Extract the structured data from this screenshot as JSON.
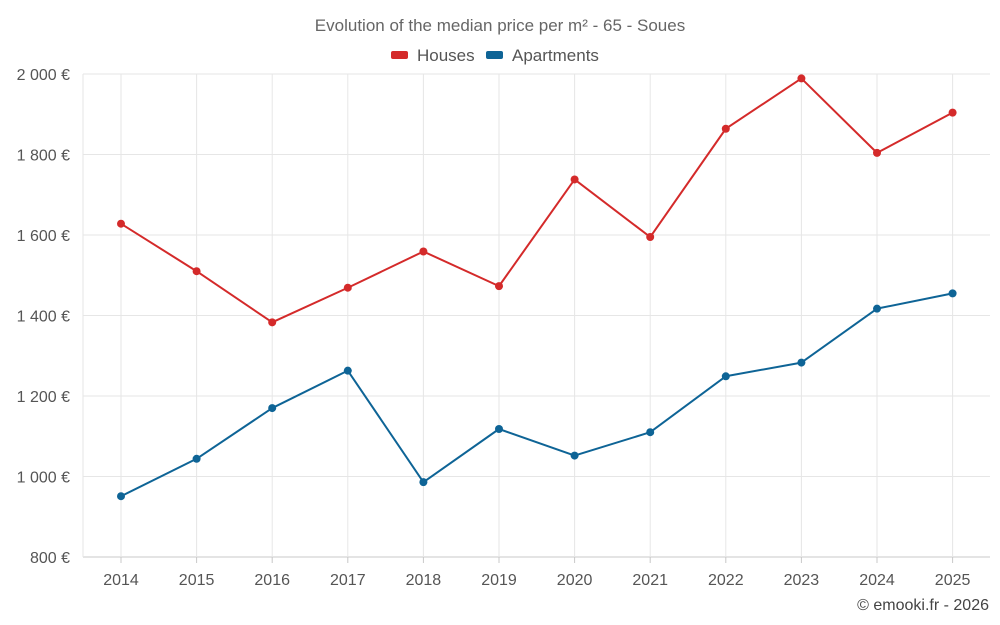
{
  "chart_data": {
    "type": "line",
    "title": "Evolution of the median price per m² - 65 - Soues",
    "categories": [
      "2014",
      "2015",
      "2016",
      "2017",
      "2018",
      "2019",
      "2020",
      "2021",
      "2022",
      "2023",
      "2024",
      "2025"
    ],
    "series": [
      {
        "name": "Houses",
        "color": "#d42a2a",
        "values": [
          1628,
          1510,
          1383,
          1469,
          1559,
          1473,
          1738,
          1595,
          1864,
          1989,
          1804,
          1904
        ]
      },
      {
        "name": "Apartments",
        "color": "#0e6496",
        "values": [
          951,
          1044,
          1170,
          1263,
          986,
          1118,
          1052,
          1110,
          1249,
          1283,
          1417,
          1455
        ]
      }
    ],
    "ylim": [
      800,
      2000
    ],
    "yticks": [
      800,
      1000,
      1200,
      1400,
      1600,
      1800,
      2000
    ],
    "ytick_labels": [
      "800 €",
      "1 000 €",
      "1 200 €",
      "1 400 €",
      "1 600 €",
      "1 800 €",
      "2 000 €"
    ],
    "xlabel": "",
    "ylabel": "",
    "grid": true,
    "legend": "top-center"
  },
  "credit": "© emooki.fr - 2026"
}
